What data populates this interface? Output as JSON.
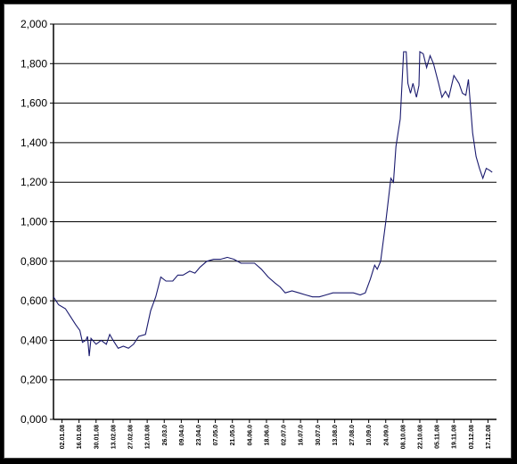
{
  "chart_data": {
    "type": "line",
    "title": "",
    "xlabel": "",
    "ylabel": "",
    "ylim": [
      0,
      2
    ],
    "y_ticks": [
      "0,000",
      "0,200",
      "0,400",
      "0,600",
      "0,800",
      "1,000",
      "1,200",
      "1,400",
      "1,600",
      "1,800",
      "2,000"
    ],
    "x_tick_labels": [
      "02.01.08",
      "16.01.08",
      "30.01.08",
      "13.02.08",
      "27.02.08",
      "12.03.08",
      "26.03.0",
      "09.04.0",
      "23.04.0",
      "07.05.0",
      "21.05.0",
      "04.06.0",
      "18.06.0",
      "02.07.0",
      "16.07.0",
      "30.07.0",
      "13.08.0",
      "27.08.0",
      "10.09.0",
      "24.09.0",
      "08.10.08",
      "22.10.08",
      "05.11.08",
      "19.11.08",
      "03.12.08",
      "17.12.08"
    ],
    "grid": true,
    "legend": "none",
    "line_color": "#1a1a6e",
    "series": [
      {
        "values": [
          [
            0.0,
            0.62
          ],
          [
            0.3,
            0.58
          ],
          [
            0.7,
            0.56
          ],
          [
            1.0,
            0.52
          ],
          [
            1.3,
            0.48
          ],
          [
            1.55,
            0.45
          ],
          [
            1.7,
            0.39
          ],
          [
            1.9,
            0.4
          ],
          [
            2.0,
            0.42
          ],
          [
            2.1,
            0.32
          ],
          [
            2.2,
            0.41
          ],
          [
            2.5,
            0.38
          ],
          [
            2.8,
            0.4
          ],
          [
            3.1,
            0.38
          ],
          [
            3.3,
            0.43
          ],
          [
            3.5,
            0.4
          ],
          [
            3.8,
            0.36
          ],
          [
            4.1,
            0.37
          ],
          [
            4.4,
            0.36
          ],
          [
            4.7,
            0.38
          ],
          [
            5.0,
            0.42
          ],
          [
            5.4,
            0.43
          ],
          [
            5.7,
            0.55
          ],
          [
            6.0,
            0.62
          ],
          [
            6.3,
            0.72
          ],
          [
            6.6,
            0.7
          ],
          [
            7.0,
            0.7
          ],
          [
            7.3,
            0.73
          ],
          [
            7.6,
            0.73
          ],
          [
            8.0,
            0.75
          ],
          [
            8.3,
            0.74
          ],
          [
            8.6,
            0.77
          ],
          [
            9.0,
            0.8
          ],
          [
            9.4,
            0.81
          ],
          [
            9.8,
            0.81
          ],
          [
            10.2,
            0.82
          ],
          [
            10.6,
            0.81
          ],
          [
            11.0,
            0.79
          ],
          [
            11.4,
            0.79
          ],
          [
            11.8,
            0.79
          ],
          [
            12.2,
            0.76
          ],
          [
            12.6,
            0.72
          ],
          [
            13.0,
            0.69
          ],
          [
            13.3,
            0.67
          ],
          [
            13.6,
            0.64
          ],
          [
            14.0,
            0.65
          ],
          [
            14.4,
            0.64
          ],
          [
            14.8,
            0.63
          ],
          [
            15.2,
            0.62
          ],
          [
            15.6,
            0.62
          ],
          [
            16.0,
            0.63
          ],
          [
            16.4,
            0.64
          ],
          [
            16.8,
            0.64
          ],
          [
            17.2,
            0.64
          ],
          [
            17.6,
            0.64
          ],
          [
            18.0,
            0.63
          ],
          [
            18.3,
            0.64
          ],
          [
            18.6,
            0.71
          ],
          [
            18.85,
            0.78
          ],
          [
            19.0,
            0.76
          ],
          [
            19.2,
            0.8
          ],
          [
            19.5,
            1.0
          ],
          [
            19.8,
            1.22
          ],
          [
            19.95,
            1.2
          ],
          [
            20.1,
            1.38
          ],
          [
            20.35,
            1.52
          ],
          [
            20.55,
            1.86
          ],
          [
            20.7,
            1.86
          ],
          [
            20.8,
            1.7
          ],
          [
            20.95,
            1.65
          ],
          [
            21.1,
            1.7
          ],
          [
            21.3,
            1.63
          ],
          [
            21.45,
            1.69
          ],
          [
            21.5,
            1.86
          ],
          [
            21.7,
            1.85
          ],
          [
            21.9,
            1.78
          ],
          [
            22.1,
            1.84
          ],
          [
            22.3,
            1.8
          ],
          [
            22.6,
            1.7
          ],
          [
            22.8,
            1.63
          ],
          [
            23.0,
            1.66
          ],
          [
            23.2,
            1.63
          ],
          [
            23.5,
            1.74
          ],
          [
            23.8,
            1.7
          ],
          [
            24.0,
            1.65
          ],
          [
            24.2,
            1.64
          ],
          [
            24.35,
            1.72
          ],
          [
            24.6,
            1.45
          ],
          [
            24.8,
            1.33
          ],
          [
            25.0,
            1.27
          ],
          [
            25.2,
            1.22
          ],
          [
            25.4,
            1.27
          ],
          [
            25.6,
            1.26
          ],
          [
            25.75,
            1.25
          ]
        ]
      }
    ]
  }
}
